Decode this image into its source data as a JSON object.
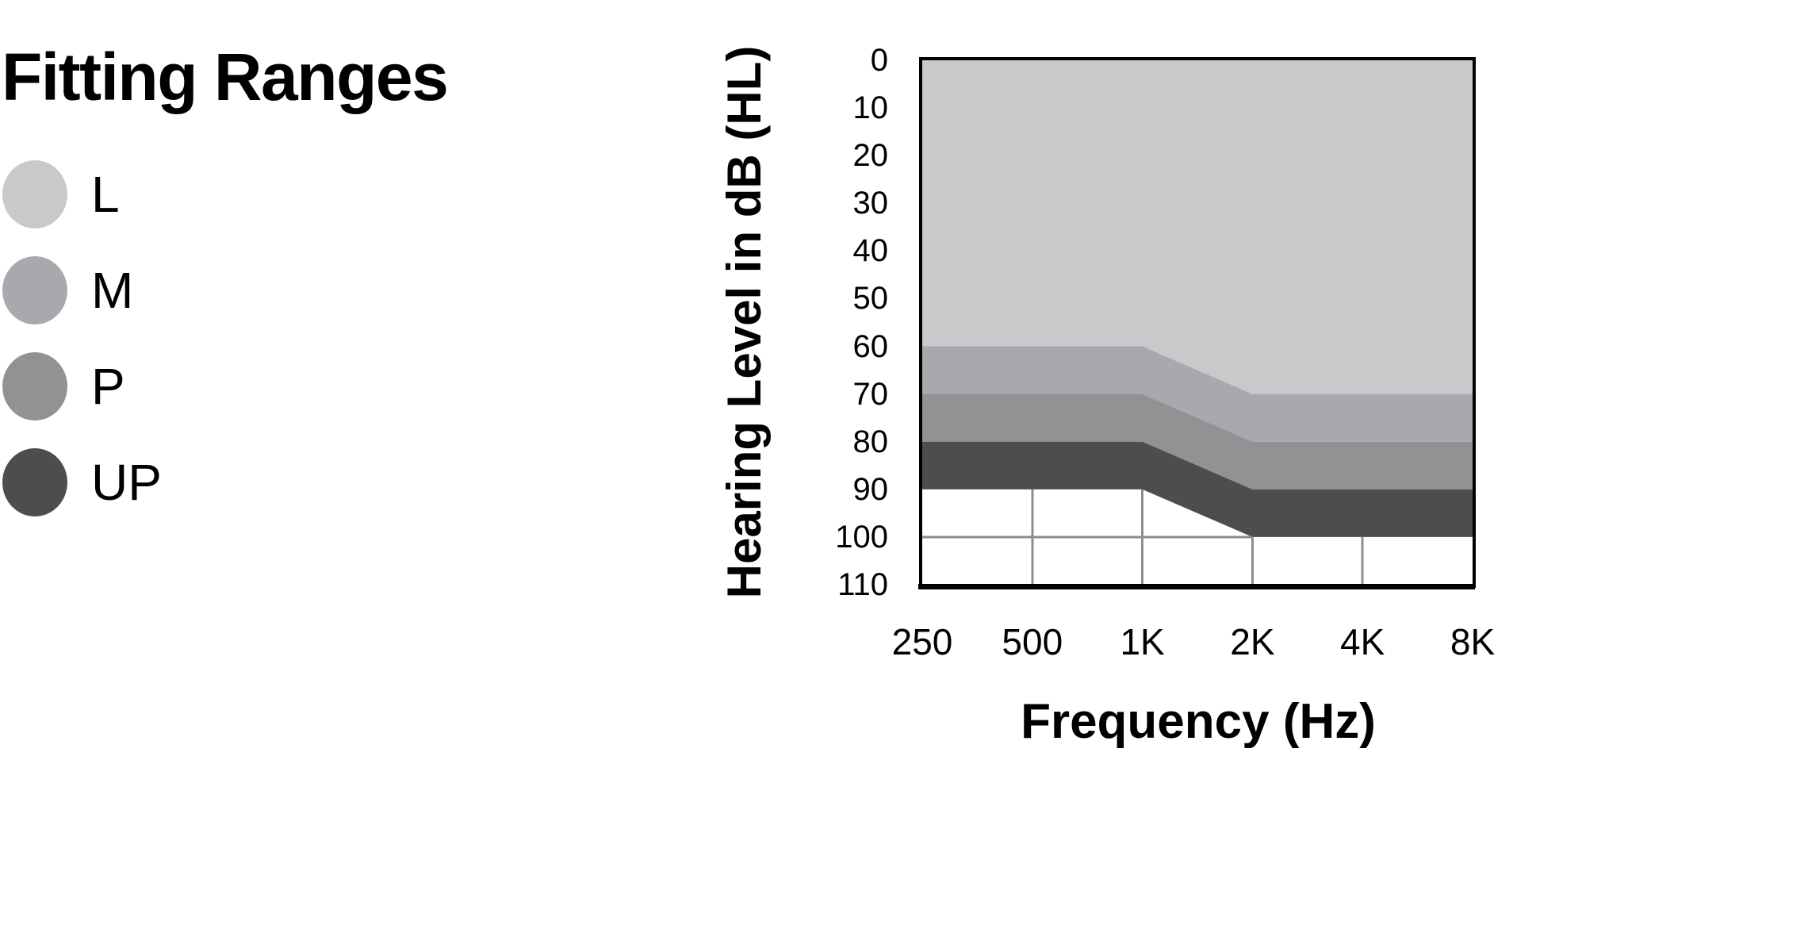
{
  "legend": {
    "title": "Fitting Ranges",
    "items": [
      {
        "label": "L"
      },
      {
        "label": "M"
      },
      {
        "label": "P"
      },
      {
        "label": "UP"
      }
    ]
  },
  "chart_data": {
    "type": "area",
    "title": "Fitting Ranges",
    "xlabel": "Frequency (Hz)",
    "ylabel": "Hearing Level in dB (HL)",
    "x_categories": [
      "250",
      "500",
      "1K",
      "2K",
      "4K",
      "8K"
    ],
    "y_ticks": [
      0,
      10,
      20,
      30,
      40,
      50,
      60,
      70,
      80,
      90,
      100,
      110
    ],
    "ylim": [
      0,
      110
    ],
    "y_axis_orientation": "reversed (0 dB HL at top, 110 at bottom)",
    "legend_position": "left of chart",
    "grid": "partial - gridlines only visible in unshaded region below fitting ranges",
    "series": [
      {
        "name": "l",
        "label": "L",
        "color": "#c7c9cb",
        "upper_db": [
          0,
          0,
          0,
          0,
          0,
          0
        ],
        "lower_db": [
          60,
          60,
          60,
          70,
          70,
          70
        ]
      },
      {
        "name": "m",
        "label": "M",
        "color": "#a7a9ac",
        "upper_db": [
          60,
          60,
          60,
          70,
          70,
          70
        ],
        "lower_db": [
          70,
          70,
          70,
          80,
          80,
          80
        ]
      },
      {
        "name": "p",
        "label": "P",
        "color": "#909294",
        "upper_db": [
          70,
          70,
          70,
          80,
          80,
          80
        ],
        "lower_db": [
          80,
          80,
          80,
          90,
          90,
          90
        ]
      },
      {
        "name": "up",
        "label": "UP",
        "color": "#4b4d4f",
        "upper_db": [
          80,
          80,
          80,
          90,
          90,
          90
        ],
        "lower_db": [
          90,
          90,
          90,
          100,
          100,
          100
        ]
      }
    ],
    "gridlines": {
      "color": "#8e8e90",
      "vertical": [
        {
          "x": "500",
          "from_db": 90,
          "to_db": 110
        },
        {
          "x": "1K",
          "from_db": 90,
          "to_db": 110
        },
        {
          "x": "2K",
          "from_db": 100,
          "to_db": 110
        },
        {
          "x": "4K",
          "from_db": 100,
          "to_db": 110
        }
      ],
      "horizontal": [
        {
          "db": 100,
          "from_x": "250",
          "to_x": "2K"
        }
      ]
    },
    "border_color": "#000000",
    "background_color": "#ffffff"
  }
}
